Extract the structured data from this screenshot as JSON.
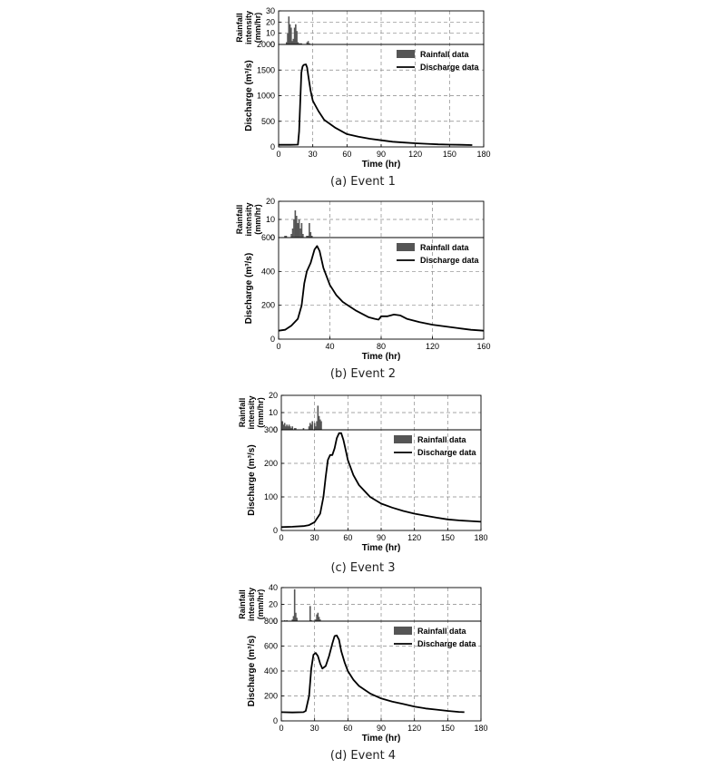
{
  "figure": {
    "legend_rain": "Rainfall data",
    "legend_discharge": "Discharge data",
    "rain_ylabel_line1": "Rainfall",
    "rain_ylabel_line2": "intensity",
    "rain_ylabel_line3": "(mm/hr)",
    "discharge_ylabel": "Discharge (m³/s)",
    "xlabel": "Time (hr)",
    "legend_position": "top-right",
    "grid": "dashed",
    "rain_color": "#555555",
    "line_color": "#000000"
  },
  "chart_data": [
    {
      "caption": "(a) Event 1",
      "type": "line",
      "xlim": [
        0,
        180
      ],
      "xticks": [
        0,
        30,
        60,
        90,
        120,
        150,
        180
      ],
      "rain_ylim": [
        0,
        30
      ],
      "rain_yticks": [
        0,
        10,
        20,
        30
      ],
      "rain_x": [
        7,
        8,
        9,
        10,
        11,
        12,
        13,
        14,
        15,
        16,
        17,
        18,
        19,
        20,
        25,
        26,
        27
      ],
      "rain": [
        2,
        10,
        25,
        18,
        15,
        3,
        5,
        15,
        18,
        12,
        2,
        1,
        1,
        1,
        2,
        3,
        1
      ],
      "discharge_ylim": [
        0,
        2000
      ],
      "discharge_yticks": [
        0,
        500,
        1000,
        1500,
        2000
      ],
      "discharge_x": [
        0,
        10,
        17,
        18,
        19,
        20,
        21,
        22,
        24,
        25,
        26,
        28,
        30,
        35,
        40,
        50,
        60,
        70,
        80,
        90,
        100,
        110,
        120,
        130,
        140,
        150,
        160,
        170
      ],
      "discharge": [
        40,
        40,
        45,
        300,
        900,
        1450,
        1570,
        1600,
        1610,
        1550,
        1400,
        1100,
        900,
        700,
        530,
        370,
        250,
        200,
        160,
        130,
        100,
        85,
        70,
        60,
        50,
        45,
        40,
        35
      ]
    },
    {
      "caption": "(b) Event 2",
      "type": "line",
      "xlim": [
        0,
        160
      ],
      "xticks": [
        0,
        40,
        80,
        120,
        160
      ],
      "rain_ylim": [
        0,
        20
      ],
      "rain_yticks": [
        0,
        10,
        20
      ],
      "rain_x": [
        5,
        6,
        10,
        11,
        12,
        13,
        14,
        15,
        16,
        17,
        18,
        19,
        22,
        23,
        24,
        25,
        26
      ],
      "rain": [
        1,
        1,
        2,
        5,
        10,
        15,
        12,
        8,
        10,
        5,
        8,
        2,
        1,
        1,
        8,
        3,
        1
      ],
      "discharge_ylim": [
        0,
        600
      ],
      "discharge_yticks": [
        0,
        200,
        400,
        600
      ],
      "discharge_x": [
        0,
        5,
        10,
        15,
        18,
        20,
        22,
        25,
        28,
        30,
        32,
        35,
        40,
        45,
        50,
        60,
        70,
        75,
        78,
        80,
        85,
        90,
        95,
        100,
        110,
        120,
        130,
        140,
        150,
        160
      ],
      "discharge": [
        50,
        55,
        80,
        120,
        200,
        330,
        400,
        450,
        530,
        550,
        520,
        420,
        320,
        260,
        220,
        170,
        130,
        120,
        115,
        135,
        135,
        145,
        140,
        120,
        100,
        85,
        75,
        65,
        55,
        50
      ]
    },
    {
      "caption": "(c) Event 3",
      "type": "line",
      "xlim": [
        0,
        180
      ],
      "xticks": [
        0,
        30,
        60,
        90,
        120,
        150,
        180
      ],
      "rain_ylim": [
        0,
        20
      ],
      "rain_yticks": [
        0,
        10,
        20
      ],
      "rain_x": [
        1,
        2,
        3,
        4,
        5,
        6,
        7,
        8,
        9,
        10,
        12,
        13,
        20,
        25,
        26,
        27,
        28,
        30,
        31,
        32,
        33,
        34,
        35,
        36
      ],
      "rain": [
        5,
        3,
        4,
        2,
        3,
        2,
        3,
        2,
        1,
        2,
        1,
        1,
        1,
        2,
        4,
        3,
        5,
        4,
        2,
        5,
        14,
        8,
        6,
        5
      ],
      "discharge_ylim": [
        0,
        300
      ],
      "discharge_yticks": [
        0,
        100,
        200,
        300
      ],
      "discharge_x": [
        0,
        10,
        20,
        25,
        30,
        35,
        38,
        40,
        42,
        44,
        46,
        48,
        50,
        52,
        54,
        56,
        58,
        60,
        65,
        70,
        80,
        90,
        100,
        110,
        120,
        130,
        140,
        150,
        160,
        170,
        180
      ],
      "discharge": [
        10,
        11,
        13,
        16,
        25,
        50,
        100,
        160,
        210,
        225,
        225,
        245,
        275,
        290,
        290,
        270,
        240,
        210,
        165,
        135,
        100,
        80,
        68,
        58,
        50,
        44,
        38,
        33,
        30,
        28,
        26
      ]
    },
    {
      "caption": "(d) Event 4",
      "type": "line",
      "xlim": [
        0,
        180
      ],
      "xticks": [
        0,
        30,
        60,
        90,
        120,
        150,
        180
      ],
      "rain_ylim": [
        0,
        40
      ],
      "rain_yticks": [
        0,
        20,
        40
      ],
      "rain_x": [
        3,
        5,
        10,
        11,
        12,
        13,
        14,
        26,
        27,
        31,
        32,
        33,
        34,
        35
      ],
      "rain": [
        1,
        1,
        2,
        6,
        38,
        10,
        4,
        18,
        1,
        2,
        8,
        10,
        5,
        2
      ],
      "discharge_ylim": [
        0,
        800
      ],
      "discharge_yticks": [
        0,
        200,
        400,
        600,
        800
      ],
      "discharge_x": [
        0,
        10,
        20,
        22,
        25,
        27,
        29,
        31,
        33,
        35,
        37,
        40,
        43,
        46,
        48,
        50,
        52,
        54,
        57,
        60,
        65,
        70,
        80,
        90,
        100,
        110,
        120,
        130,
        140,
        150,
        160,
        165
      ],
      "discharge": [
        70,
        68,
        70,
        80,
        200,
        420,
        530,
        545,
        520,
        460,
        420,
        440,
        520,
        620,
        680,
        685,
        650,
        560,
        470,
        400,
        330,
        280,
        220,
        180,
        155,
        135,
        115,
        100,
        90,
        80,
        72,
        70
      ]
    }
  ]
}
